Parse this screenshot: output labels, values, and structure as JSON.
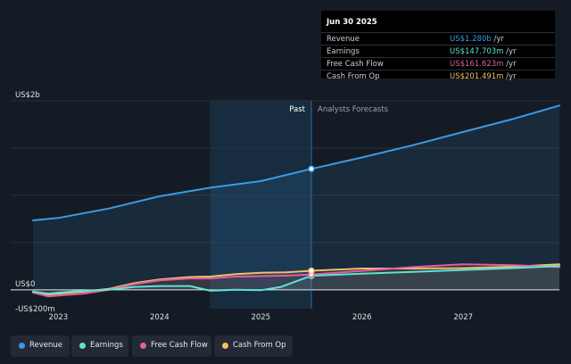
{
  "colors": {
    "revenue": "#3a9be6",
    "earnings": "#5ee3d2",
    "free_cash_flow": "#e05fa0",
    "cash_from_op": "#f2bf6a",
    "background": "#151b24",
    "highlight": "#1b3a55"
  },
  "tooltip": {
    "date": "Jun 30 2025",
    "rows": [
      {
        "name": "Revenue",
        "value": "US$1.280b",
        "unit": "/yr"
      },
      {
        "name": "Earnings",
        "value": "US$147.703m",
        "unit": "/yr"
      },
      {
        "name": "Free Cash Flow",
        "value": "US$161.623m",
        "unit": "/yr"
      },
      {
        "name": "Cash From Op",
        "value": "US$201.491m",
        "unit": "/yr"
      }
    ]
  },
  "legend": [
    {
      "label": "Revenue"
    },
    {
      "label": "Earnings"
    },
    {
      "label": "Free Cash Flow"
    },
    {
      "label": "Cash From Op"
    }
  ],
  "chart_data": {
    "type": "line",
    "y_unit": "US$ millions",
    "ylim": [
      -200,
      2000
    ],
    "y_tick_labels": [
      {
        "value": 2000,
        "label": "US$2b"
      },
      {
        "value": 0,
        "label": "US$0"
      },
      {
        "value": -200,
        "label": "-US$200m"
      }
    ],
    "xlim": [
      2022.75,
      2027.95
    ],
    "x_ticks": [
      {
        "value": 2023,
        "label": "2023"
      },
      {
        "value": 2024,
        "label": "2024"
      },
      {
        "value": 2025,
        "label": "2025"
      },
      {
        "value": 2026,
        "label": "2026"
      },
      {
        "value": 2027,
        "label": "2027"
      }
    ],
    "past_label": "Past",
    "forecast_label": "Analysts Forecasts",
    "divider_x": 2025.5,
    "highlight_start_x": 2024.5,
    "series": [
      {
        "name": "Revenue",
        "key": "revenue",
        "x": [
          2022.75,
          2023.0,
          2023.5,
          2024.0,
          2024.5,
          2025.0,
          2025.5,
          2026.0,
          2026.5,
          2027.0,
          2027.5,
          2027.95
        ],
        "values": [
          735,
          760,
          860,
          990,
          1080,
          1150,
          1280,
          1400,
          1530,
          1670,
          1810,
          1950
        ]
      },
      {
        "name": "Earnings",
        "key": "earnings",
        "x": [
          2022.75,
          2022.9,
          2023.0,
          2023.25,
          2023.5,
          2023.75,
          2024.0,
          2024.3,
          2024.5,
          2024.75,
          2025.0,
          2025.2,
          2025.5,
          2026.0,
          2026.5,
          2027.0,
          2027.5,
          2027.95
        ],
        "values": [
          -20,
          -40,
          -30,
          -10,
          0,
          30,
          40,
          40,
          -10,
          0,
          -5,
          30,
          148,
          170,
          190,
          210,
          230,
          250
        ]
      },
      {
        "name": "Free Cash Flow",
        "key": "free_cash_flow",
        "x": [
          2022.75,
          2022.9,
          2023.0,
          2023.25,
          2023.5,
          2023.75,
          2024.0,
          2024.3,
          2024.5,
          2024.75,
          2025.0,
          2025.25,
          2025.5,
          2026.0,
          2026.5,
          2027.0,
          2027.5,
          2027.95
        ],
        "values": [
          -30,
          -70,
          -60,
          -40,
          0,
          60,
          100,
          120,
          120,
          140,
          145,
          150,
          162,
          200,
          240,
          270,
          260,
          240
        ]
      },
      {
        "name": "Cash From Op",
        "key": "cash_from_op",
        "x": [
          2022.75,
          2022.9,
          2023.0,
          2023.25,
          2023.5,
          2023.75,
          2024.0,
          2024.3,
          2024.5,
          2024.75,
          2025.0,
          2025.25,
          2025.5,
          2026.0,
          2026.5,
          2027.0,
          2027.5,
          2027.95
        ],
        "values": [
          -20,
          -50,
          -40,
          -20,
          10,
          70,
          110,
          135,
          140,
          165,
          180,
          185,
          201,
          225,
          225,
          230,
          245,
          270
        ]
      }
    ]
  }
}
